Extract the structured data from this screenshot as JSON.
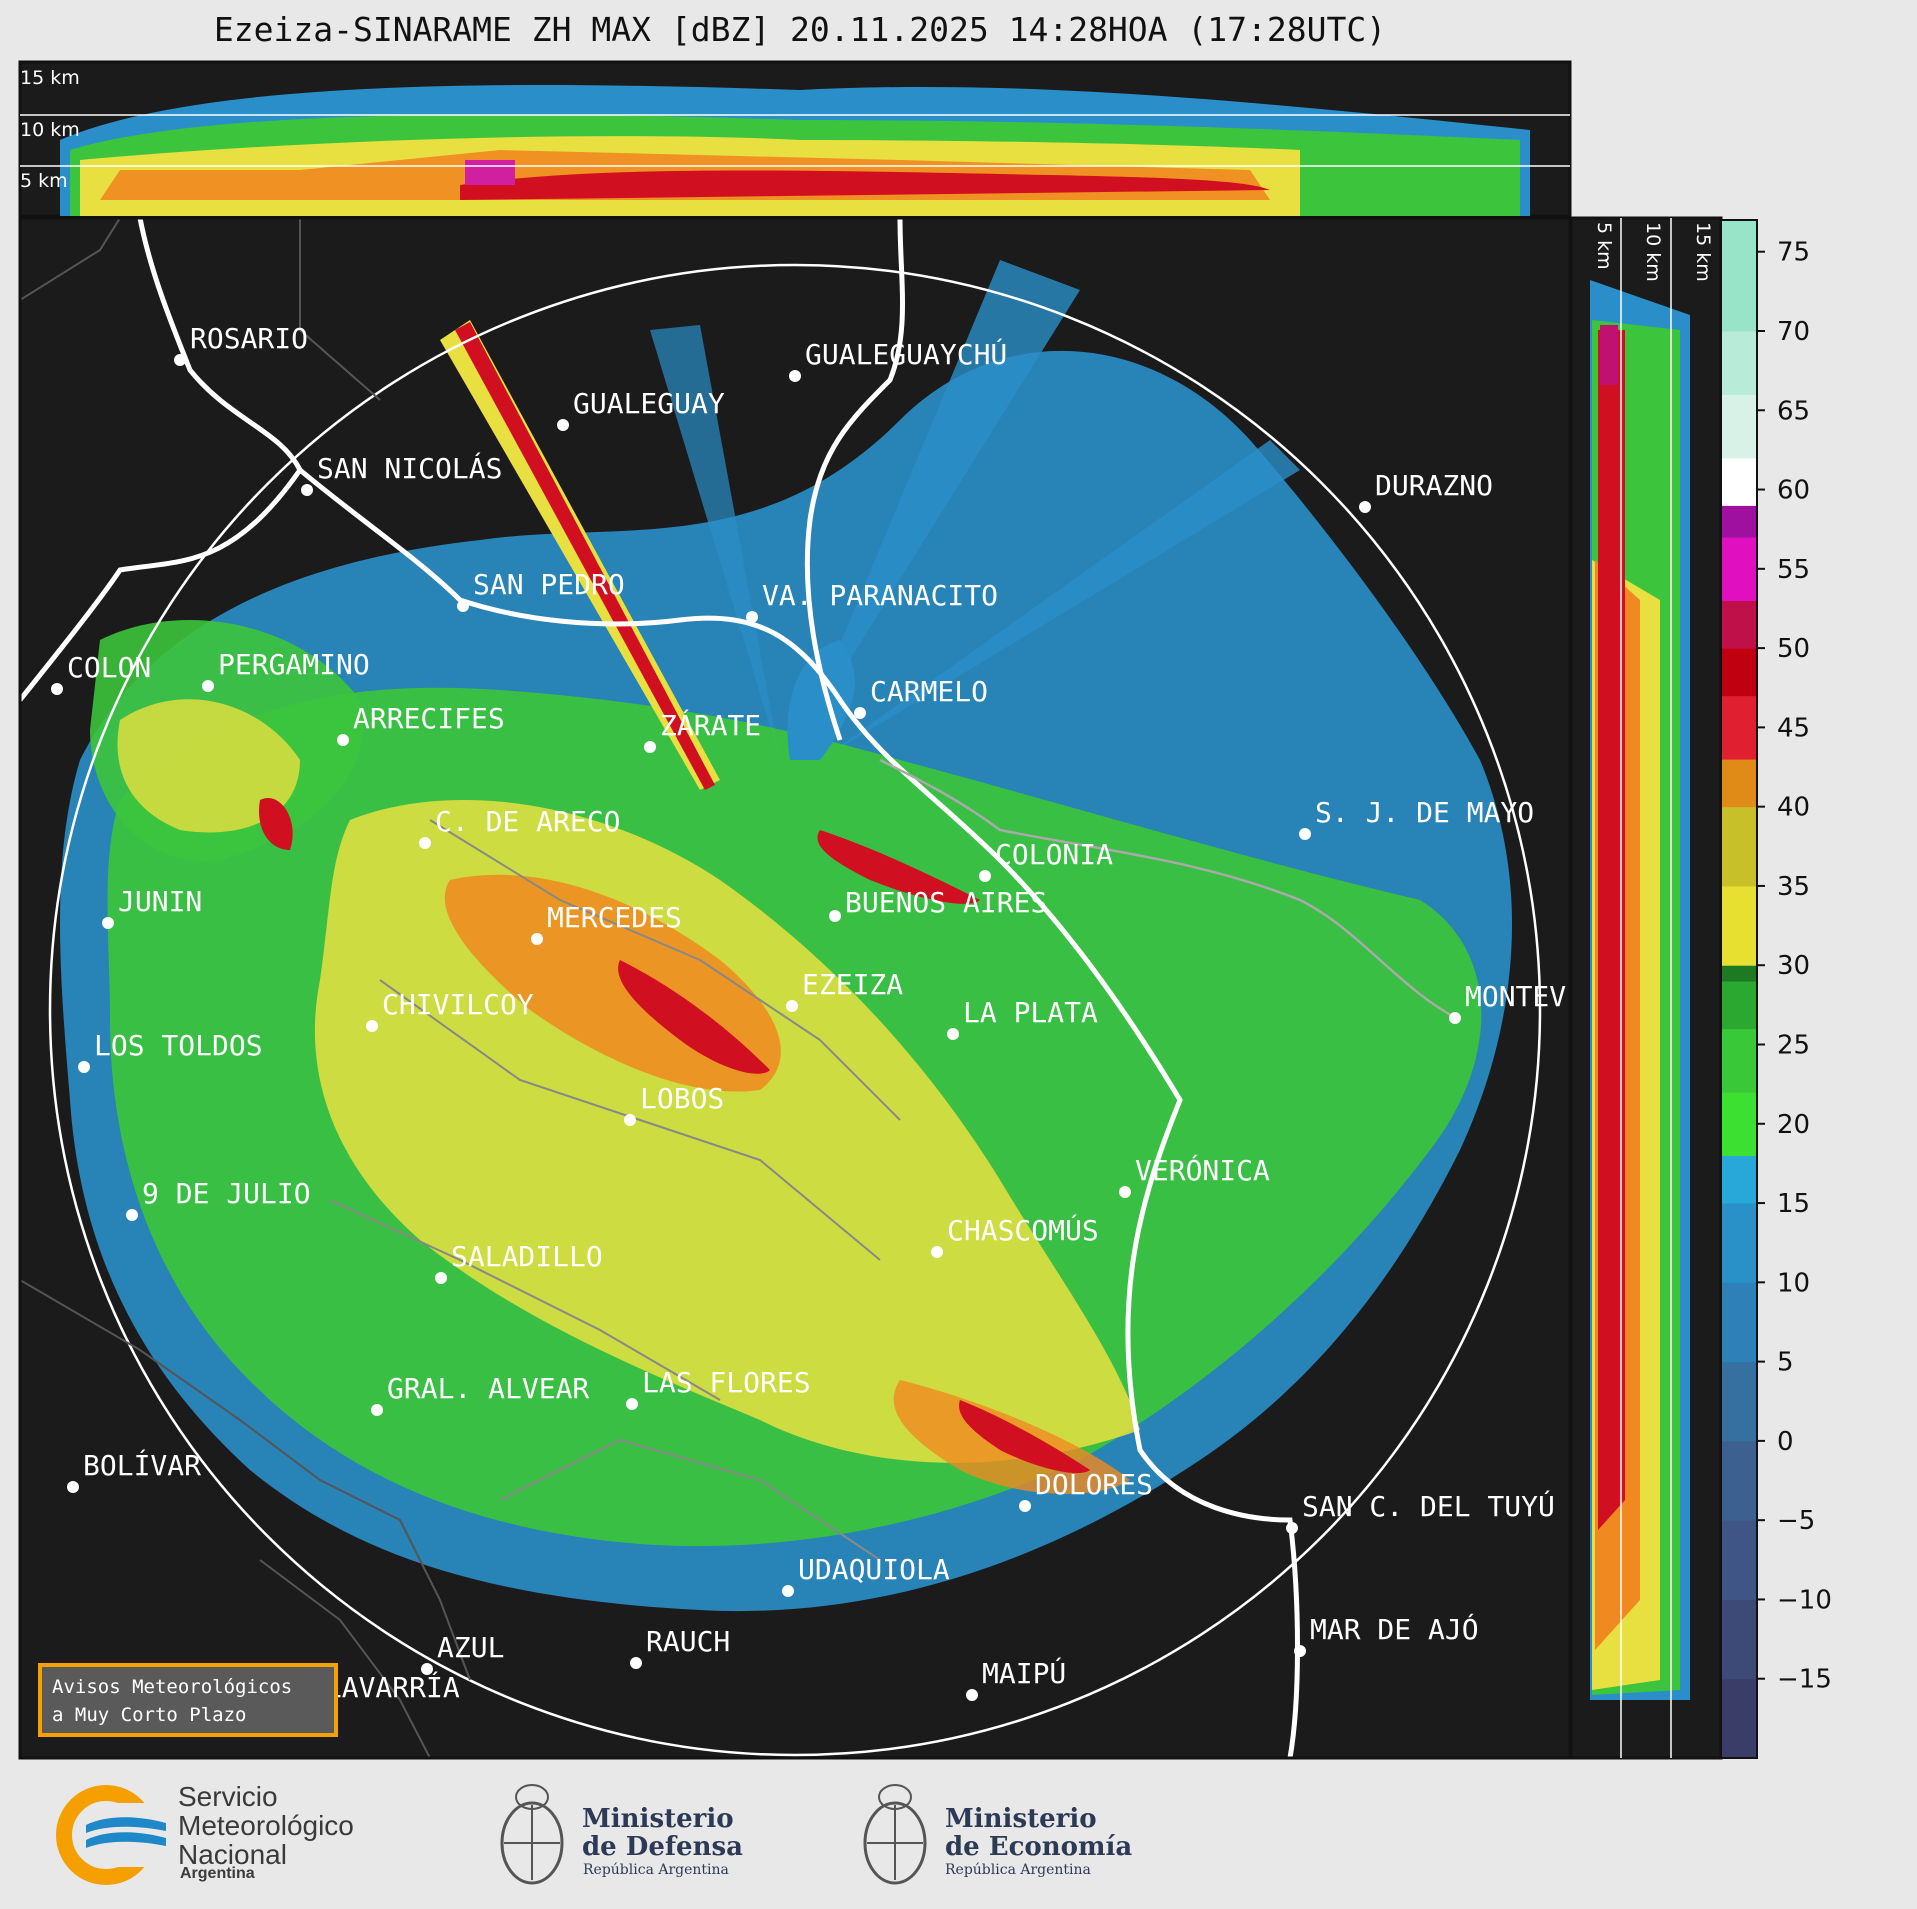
{
  "title": "Ezeiza-SINARAME ZH MAX [dBZ] 20.11.2025 14:28HOA (17:28UTC)",
  "top_panel_altitudes": [
    "15 km",
    "10 km",
    "5 km"
  ],
  "side_panel_altitudes": [
    "5 km",
    "10 km",
    "15 km"
  ],
  "colorbar": {
    "unit": "dBZ",
    "ticks": [
      "75",
      "70",
      "65",
      "60",
      "55",
      "50",
      "45",
      "40",
      "35",
      "30",
      "25",
      "20",
      "15",
      "10",
      "5",
      "0",
      "−5",
      "−10",
      "−15"
    ],
    "range": [
      -20,
      77
    ]
  },
  "cities": [
    {
      "name": "ROSARIO"
    },
    {
      "name": "GUALEGUAYCHÚ"
    },
    {
      "name": "GUALEGUAY"
    },
    {
      "name": "SAN NICOLÁS"
    },
    {
      "name": "DURAZNO"
    },
    {
      "name": "SAN PEDRO"
    },
    {
      "name": "VA. PARANACITO"
    },
    {
      "name": "COLON"
    },
    {
      "name": "PERGAMINO"
    },
    {
      "name": "CARMELO"
    },
    {
      "name": "ARRECIFES"
    },
    {
      "name": "ZÁRATE"
    },
    {
      "name": "S. J. DE MAYO"
    },
    {
      "name": "C. DE ARECO"
    },
    {
      "name": "COLONIA"
    },
    {
      "name": "BUENOS AIRES"
    },
    {
      "name": "JUNIN"
    },
    {
      "name": "MERCEDES"
    },
    {
      "name": "EZEIZA"
    },
    {
      "name": "MONTEV"
    },
    {
      "name": "CHIVILCOY"
    },
    {
      "name": "LA PLATA"
    },
    {
      "name": "LOS TOLDOS"
    },
    {
      "name": "LOBOS"
    },
    {
      "name": "VERÓNICA"
    },
    {
      "name": "9 DE JULIO"
    },
    {
      "name": "CHASCOMÚS"
    },
    {
      "name": "SALADILLO"
    },
    {
      "name": "GRAL. ALVEAR"
    },
    {
      "name": "LAS FLORES"
    },
    {
      "name": "BOLÍVAR"
    },
    {
      "name": "DOLORES"
    },
    {
      "name": "SAN C. DEL TUYÚ"
    },
    {
      "name": "UDAQUIOLA"
    },
    {
      "name": "MAR DE AJÓ"
    },
    {
      "name": "AZUL"
    },
    {
      "name": "RAUCH"
    },
    {
      "name": "OLAVARRÍA"
    },
    {
      "name": "MAIPÚ"
    }
  ],
  "aviso": "Avisos Meteorológicos\na Muy Corto Plazo",
  "logos": {
    "smn_name": "Servicio\nMeteorológico\nNacional",
    "smn_country": "Argentina",
    "defensa_title": "Ministerio\nde Defensa",
    "defensa_sub": "República Argentina",
    "economia_title": "Ministerio\nde Economía",
    "economia_sub": "República Argentina"
  },
  "colors": {
    "map_bg": "#1b1b1b",
    "smn_orange": "#f5a000",
    "smn_blue": "#1e88c8"
  }
}
